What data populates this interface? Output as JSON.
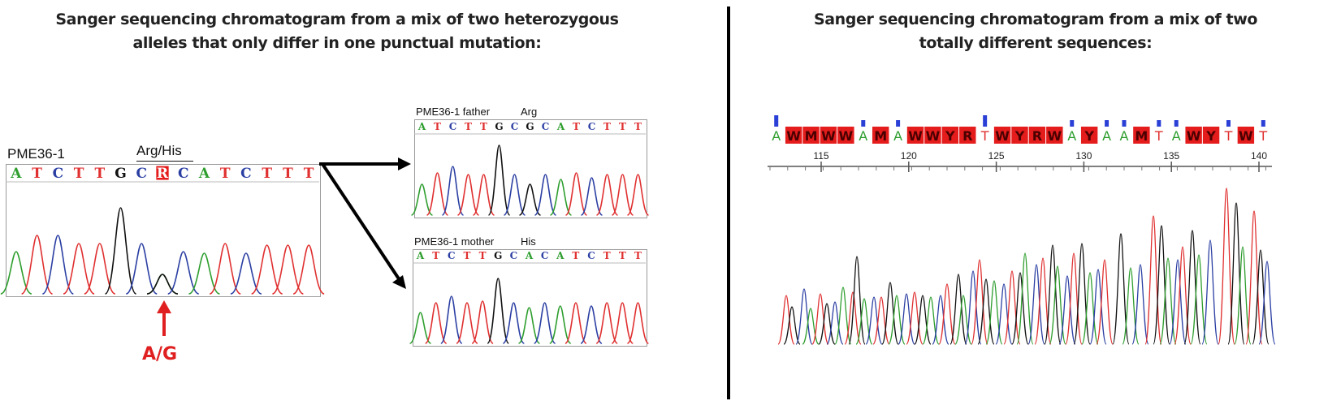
{
  "title_left": {
    "line1": "Sanger sequencing chromatogram from a mix of two heterozygous",
    "line2": "alleles that only differ in one punctual mutation:"
  },
  "title_right": {
    "line1": "Sanger sequencing chromatogram from a mix of two",
    "line2": "totally different sequences:"
  },
  "sample": {
    "name": "PME36-1",
    "codon_label": "Arg/His",
    "bases": [
      "A",
      "T",
      "C",
      "T",
      "T",
      "G",
      "C",
      "R",
      "C",
      "A",
      "T",
      "C",
      "T",
      "T",
      "T"
    ],
    "mutation_label": "A/G"
  },
  "father": {
    "name": "PME36-1 father",
    "codon_label": "Arg",
    "bases": [
      "A",
      "T",
      "C",
      "T",
      "T",
      "G",
      "C",
      "G",
      "C",
      "A",
      "T",
      "C",
      "T",
      "T",
      "T"
    ]
  },
  "mother": {
    "name": "PME36-1 mother",
    "codon_label": "His",
    "bases": [
      "A",
      "T",
      "C",
      "T",
      "T",
      "G",
      "C",
      "A",
      "C",
      "A",
      "T",
      "C",
      "T",
      "T",
      "T"
    ]
  },
  "mix": {
    "sequence": "AWMWWAMAWWYRTWYRWAYAAMTAWYTWT",
    "ruler_ticks": [
      "115",
      "120",
      "125",
      "130",
      "135",
      "140"
    ]
  },
  "colors": {
    "A": "#2e9e2e",
    "C": "#2b3fa3",
    "G": "#111111",
    "T": "#e03030",
    "ambiguous_bg": "#e41c1c",
    "arrow": "#e02020"
  }
}
